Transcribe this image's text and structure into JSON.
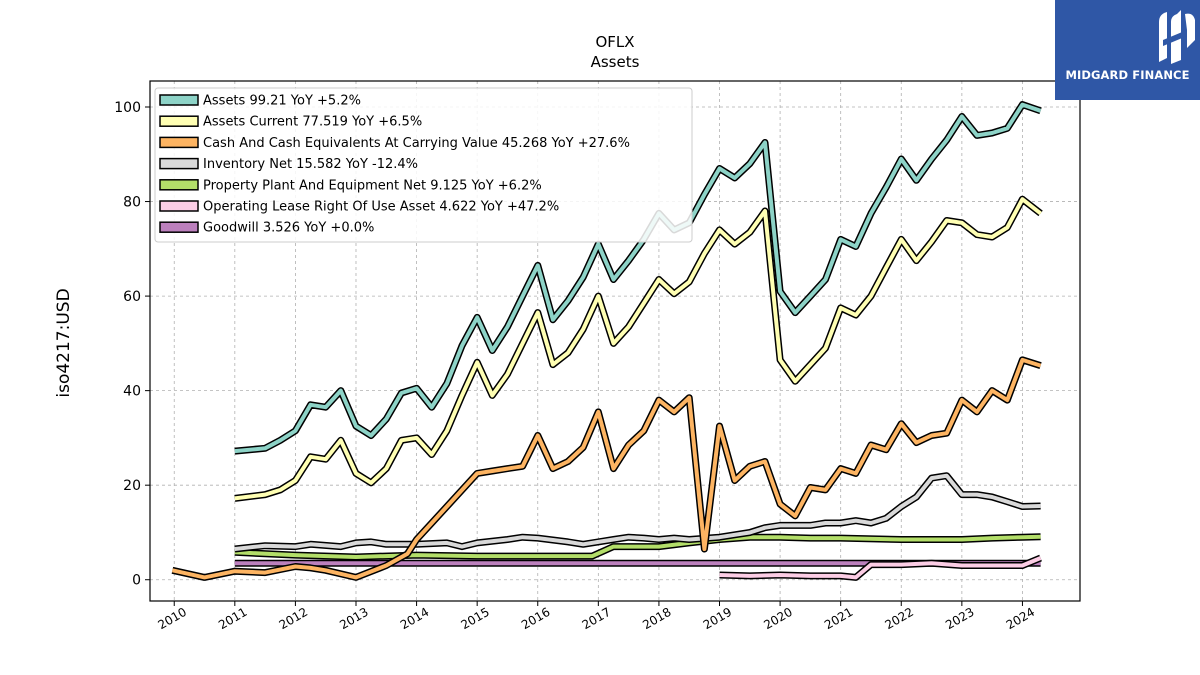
{
  "chart_data": {
    "type": "line",
    "title": "OFLX",
    "subtitle": "Assets",
    "ylabel": "iso4217:USD",
    "xlabel": "",
    "xlim": [
      2009.6,
      2024.95
    ],
    "ylim": [
      -4.5,
      105.5
    ],
    "x_ticks": [
      "2010",
      "2011",
      "2012",
      "2013",
      "2014",
      "2015",
      "2016",
      "2017",
      "2018",
      "2019",
      "2020",
      "2021",
      "2022",
      "2023",
      "2024"
    ],
    "y_ticks": [
      "0",
      "20",
      "40",
      "60",
      "80",
      "100"
    ],
    "grid": true,
    "legend_position": "top-left",
    "series": [
      {
        "name": "Assets",
        "legend": "Assets  99.21 YoY +5.2%",
        "color": "#8dd3c7",
        "points": [
          [
            2011.0,
            27.2
          ],
          [
            2011.5,
            27.8
          ],
          [
            2011.75,
            29.5
          ],
          [
            2012.0,
            31.5
          ],
          [
            2012.25,
            37.0
          ],
          [
            2012.5,
            36.5
          ],
          [
            2012.75,
            40.0
          ],
          [
            2013.0,
            32.5
          ],
          [
            2013.25,
            30.5
          ],
          [
            2013.5,
            34.0
          ],
          [
            2013.75,
            39.5
          ],
          [
            2014.0,
            40.5
          ],
          [
            2014.25,
            36.5
          ],
          [
            2014.5,
            41.5
          ],
          [
            2014.75,
            49.5
          ],
          [
            2015.0,
            55.5
          ],
          [
            2015.25,
            48.5
          ],
          [
            2015.5,
            53.5
          ],
          [
            2015.75,
            60.0
          ],
          [
            2016.0,
            66.5
          ],
          [
            2016.25,
            55.0
          ],
          [
            2016.5,
            59.0
          ],
          [
            2016.75,
            64.0
          ],
          [
            2017.0,
            71.0
          ],
          [
            2017.25,
            63.5
          ],
          [
            2017.5,
            67.5
          ],
          [
            2017.75,
            72.0
          ],
          [
            2018.0,
            77.5
          ],
          [
            2018.25,
            74.0
          ],
          [
            2018.5,
            75.5
          ],
          [
            2018.75,
            81.5
          ],
          [
            2019.0,
            87.0
          ],
          [
            2019.25,
            85.0
          ],
          [
            2019.5,
            88.0
          ],
          [
            2019.75,
            92.5
          ],
          [
            2020.0,
            61.0
          ],
          [
            2020.25,
            56.5
          ],
          [
            2020.5,
            60.0
          ],
          [
            2020.75,
            63.5
          ],
          [
            2021.0,
            72.0
          ],
          [
            2021.25,
            70.5
          ],
          [
            2021.5,
            77.5
          ],
          [
            2021.75,
            83.0
          ],
          [
            2022.0,
            89.0
          ],
          [
            2022.25,
            84.5
          ],
          [
            2022.5,
            89.0
          ],
          [
            2022.75,
            93.0
          ],
          [
            2023.0,
            98.0
          ],
          [
            2023.25,
            94.0
          ],
          [
            2023.5,
            94.5
          ],
          [
            2023.75,
            95.5
          ],
          [
            2024.0,
            100.5
          ],
          [
            2024.3,
            99.2
          ]
        ]
      },
      {
        "name": "Assets Current",
        "legend": "Assets Current  77.519 YoY +6.5%",
        "color": "#ffffb3",
        "points": [
          [
            2011.0,
            17.2
          ],
          [
            2011.5,
            18.0
          ],
          [
            2011.75,
            19.0
          ],
          [
            2012.0,
            21.0
          ],
          [
            2012.25,
            26.0
          ],
          [
            2012.5,
            25.5
          ],
          [
            2012.75,
            29.5
          ],
          [
            2013.0,
            22.5
          ],
          [
            2013.25,
            20.5
          ],
          [
            2013.5,
            23.5
          ],
          [
            2013.75,
            29.5
          ],
          [
            2014.0,
            30.0
          ],
          [
            2014.25,
            26.5
          ],
          [
            2014.5,
            31.5
          ],
          [
            2014.75,
            39.0
          ],
          [
            2015.0,
            46.0
          ],
          [
            2015.25,
            39.0
          ],
          [
            2015.5,
            43.5
          ],
          [
            2015.75,
            50.0
          ],
          [
            2016.0,
            56.5
          ],
          [
            2016.25,
            45.5
          ],
          [
            2016.5,
            48.0
          ],
          [
            2016.75,
            53.0
          ],
          [
            2017.0,
            60.0
          ],
          [
            2017.25,
            50.0
          ],
          [
            2017.5,
            53.5
          ],
          [
            2017.75,
            58.5
          ],
          [
            2018.0,
            63.5
          ],
          [
            2018.25,
            60.5
          ],
          [
            2018.5,
            63.0
          ],
          [
            2018.75,
            69.0
          ],
          [
            2019.0,
            74.0
          ],
          [
            2019.25,
            71.0
          ],
          [
            2019.5,
            73.5
          ],
          [
            2019.75,
            78.0
          ],
          [
            2020.0,
            46.5
          ],
          [
            2020.25,
            42.0
          ],
          [
            2020.5,
            45.5
          ],
          [
            2020.75,
            49.0
          ],
          [
            2021.0,
            57.5
          ],
          [
            2021.25,
            56.0
          ],
          [
            2021.5,
            60.0
          ],
          [
            2021.75,
            66.0
          ],
          [
            2022.0,
            72.0
          ],
          [
            2022.25,
            67.5
          ],
          [
            2022.5,
            71.5
          ],
          [
            2022.75,
            76.0
          ],
          [
            2023.0,
            75.5
          ],
          [
            2023.25,
            73.0
          ],
          [
            2023.5,
            72.5
          ],
          [
            2023.75,
            74.5
          ],
          [
            2024.0,
            80.5
          ],
          [
            2024.3,
            77.5
          ]
        ]
      },
      {
        "name": "Cash And Cash Equivalents At Carrying Value",
        "legend": "Cash And Cash Equivalents At Carrying Value  45.268 YoY +27.6%",
        "color": "#fdb462",
        "points": [
          [
            2009.97,
            2.0
          ],
          [
            2010.5,
            0.5
          ],
          [
            2011.0,
            1.8
          ],
          [
            2011.5,
            1.5
          ],
          [
            2012.0,
            2.8
          ],
          [
            2012.25,
            2.5
          ],
          [
            2012.5,
            2.0
          ],
          [
            2013.0,
            0.5
          ],
          [
            2013.5,
            3.0
          ],
          [
            2013.85,
            5.5
          ],
          [
            2014.0,
            8.5
          ],
          [
            2014.5,
            15.5
          ],
          [
            2015.0,
            22.5
          ],
          [
            2015.25,
            23.0
          ],
          [
            2015.5,
            23.5
          ],
          [
            2015.75,
            24.0
          ],
          [
            2016.0,
            30.5
          ],
          [
            2016.25,
            23.5
          ],
          [
            2016.5,
            25.0
          ],
          [
            2016.75,
            28.0
          ],
          [
            2017.0,
            35.5
          ],
          [
            2017.25,
            23.5
          ],
          [
            2017.5,
            28.5
          ],
          [
            2017.75,
            31.5
          ],
          [
            2018.0,
            38.0
          ],
          [
            2018.25,
            35.5
          ],
          [
            2018.5,
            38.5
          ],
          [
            2018.75,
            6.5
          ],
          [
            2019.0,
            32.5
          ],
          [
            2019.25,
            21.0
          ],
          [
            2019.5,
            24.0
          ],
          [
            2019.75,
            25.0
          ],
          [
            2020.0,
            16.0
          ],
          [
            2020.25,
            13.5
          ],
          [
            2020.5,
            19.5
          ],
          [
            2020.75,
            19.0
          ],
          [
            2021.0,
            23.5
          ],
          [
            2021.25,
            22.5
          ],
          [
            2021.5,
            28.5
          ],
          [
            2021.75,
            27.5
          ],
          [
            2022.0,
            33.0
          ],
          [
            2022.25,
            29.0
          ],
          [
            2022.5,
            30.5
          ],
          [
            2022.75,
            31.0
          ],
          [
            2023.0,
            38.0
          ],
          [
            2023.25,
            35.5
          ],
          [
            2023.5,
            40.0
          ],
          [
            2023.75,
            38.0
          ],
          [
            2024.0,
            46.5
          ],
          [
            2024.3,
            45.3
          ]
        ]
      },
      {
        "name": "Inventory Net",
        "legend": "Inventory Net  15.582 YoY -12.4%",
        "color": "#d9d9d9",
        "points": [
          [
            2011.0,
            6.5
          ],
          [
            2011.5,
            7.2
          ],
          [
            2012.0,
            7.0
          ],
          [
            2012.25,
            7.5
          ],
          [
            2012.75,
            7.0
          ],
          [
            2013.0,
            7.8
          ],
          [
            2013.25,
            8.0
          ],
          [
            2013.5,
            7.5
          ],
          [
            2014.0,
            7.5
          ],
          [
            2014.5,
            7.8
          ],
          [
            2014.75,
            7.0
          ],
          [
            2015.0,
            7.8
          ],
          [
            2015.5,
            8.5
          ],
          [
            2015.75,
            9.0
          ],
          [
            2016.0,
            8.8
          ],
          [
            2016.5,
            8.0
          ],
          [
            2016.75,
            7.5
          ],
          [
            2017.0,
            8.0
          ],
          [
            2017.25,
            8.5
          ],
          [
            2017.5,
            9.0
          ],
          [
            2017.75,
            8.8
          ],
          [
            2018.0,
            8.5
          ],
          [
            2018.25,
            8.8
          ],
          [
            2018.5,
            8.5
          ],
          [
            2019.0,
            9.0
          ],
          [
            2019.25,
            9.5
          ],
          [
            2019.5,
            10.0
          ],
          [
            2019.75,
            11.0
          ],
          [
            2020.0,
            11.5
          ],
          [
            2020.5,
            11.5
          ],
          [
            2020.75,
            12.0
          ],
          [
            2021.0,
            12.0
          ],
          [
            2021.25,
            12.5
          ],
          [
            2021.5,
            12.0
          ],
          [
            2021.75,
            13.0
          ],
          [
            2022.0,
            15.5
          ],
          [
            2022.25,
            17.5
          ],
          [
            2022.5,
            21.5
          ],
          [
            2022.75,
            22.0
          ],
          [
            2023.0,
            18.0
          ],
          [
            2023.25,
            18.0
          ],
          [
            2023.5,
            17.5
          ],
          [
            2023.75,
            16.5
          ],
          [
            2024.0,
            15.5
          ],
          [
            2024.3,
            15.6
          ]
        ]
      },
      {
        "name": "Property Plant And Equipment Net",
        "legend": "Property Plant And Equipment Net  9.125 YoY +6.2%",
        "color": "#b3de69",
        "points": [
          [
            2011.0,
            5.8
          ],
          [
            2012.0,
            5.2
          ],
          [
            2013.0,
            4.8
          ],
          [
            2014.0,
            5.2
          ],
          [
            2015.0,
            5.0
          ],
          [
            2016.0,
            5.0
          ],
          [
            2016.9,
            5.0
          ],
          [
            2017.25,
            7.0
          ],
          [
            2018.0,
            7.0
          ],
          [
            2018.5,
            7.8
          ],
          [
            2019.0,
            8.5
          ],
          [
            2019.5,
            9.0
          ],
          [
            2020.0,
            9.0
          ],
          [
            2020.5,
            8.8
          ],
          [
            2021.0,
            8.8
          ],
          [
            2022.0,
            8.5
          ],
          [
            2022.5,
            8.5
          ],
          [
            2023.0,
            8.5
          ],
          [
            2023.5,
            8.8
          ],
          [
            2024.0,
            9.0
          ],
          [
            2024.3,
            9.1
          ]
        ]
      },
      {
        "name": "Operating Lease Right Of Use Asset",
        "legend": "Operating Lease Right Of Use Asset  4.622 YoY +47.2%",
        "color": "#fccde5",
        "points": [
          [
            2019.0,
            1.0
          ],
          [
            2019.5,
            0.8
          ],
          [
            2020.0,
            1.0
          ],
          [
            2020.5,
            0.8
          ],
          [
            2021.0,
            0.8
          ],
          [
            2021.25,
            0.5
          ],
          [
            2021.5,
            3.2
          ],
          [
            2022.0,
            3.2
          ],
          [
            2022.5,
            3.5
          ],
          [
            2023.0,
            3.0
          ],
          [
            2023.5,
            3.0
          ],
          [
            2024.0,
            3.0
          ],
          [
            2024.3,
            4.6
          ]
        ]
      },
      {
        "name": "Goodwill",
        "legend": "Goodwill  3.526 YoY +0.0%",
        "color": "#bc80bd",
        "points": [
          [
            2011.0,
            3.5
          ],
          [
            2024.3,
            3.5
          ]
        ]
      }
    ]
  },
  "logo": {
    "text": "MIDGARD FINANCE",
    "background": "#2f57a6"
  }
}
